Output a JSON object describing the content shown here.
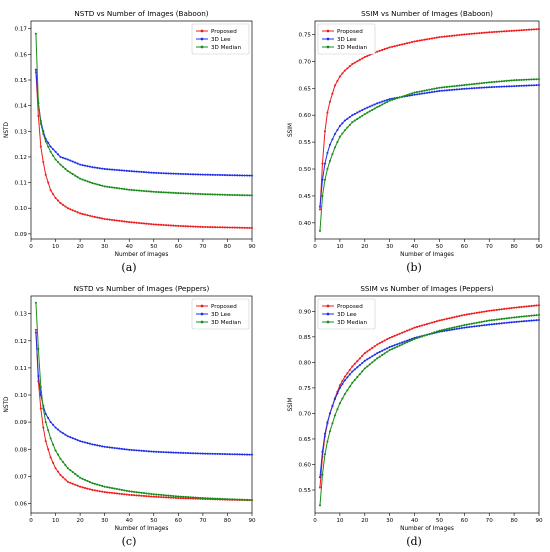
{
  "legend_labels": [
    "Proposed",
    "3D Lee",
    "3D Median"
  ],
  "colors": {
    "proposed": "#ee1c1c",
    "lee": "#1f2fe8",
    "median": "#1a8c1a"
  },
  "chart_data": [
    {
      "type": "line",
      "title": "NSTD vs Number of Images (Baboon)",
      "xlabel": "Number of Images",
      "ylabel": "NSTD",
      "caption": "(a)",
      "xlim": [
        0,
        90
      ],
      "ylim": [
        0.088,
        0.173
      ],
      "xticks": [
        0,
        10,
        20,
        30,
        40,
        50,
        60,
        70,
        80,
        90
      ],
      "yticks": [
        0.09,
        0.1,
        0.11,
        0.12,
        0.13,
        0.14,
        0.15,
        0.16,
        0.17
      ],
      "ytick_labels": [
        "0.09",
        "0.10",
        "0.11",
        "0.12",
        "0.13",
        "0.14",
        "0.15",
        "0.16",
        "0.17"
      ],
      "legend_position": "top-right",
      "grid": false,
      "x": [
        2,
        3,
        4,
        5,
        6,
        8,
        10,
        12,
        15,
        20,
        25,
        30,
        40,
        50,
        60,
        70,
        80,
        90
      ],
      "series": [
        {
          "name": "Proposed",
          "values": [
            0.153,
            0.136,
            0.124,
            0.118,
            0.113,
            0.107,
            0.104,
            0.102,
            0.1,
            0.098,
            0.0968,
            0.0958,
            0.0946,
            0.0937,
            0.0931,
            0.0927,
            0.0925,
            0.0923
          ]
        },
        {
          "name": "3D Lee",
          "values": [
            0.154,
            0.141,
            0.134,
            0.13,
            0.127,
            0.124,
            0.122,
            0.12,
            0.119,
            0.117,
            0.116,
            0.1153,
            0.1145,
            0.1138,
            0.1134,
            0.1131,
            0.1129,
            0.1127
          ]
        },
        {
          "name": "3D Median",
          "values": [
            0.168,
            0.141,
            0.133,
            0.129,
            0.126,
            0.122,
            0.119,
            0.117,
            0.1145,
            0.1115,
            0.1098,
            0.1085,
            0.1072,
            0.1064,
            0.1059,
            0.1055,
            0.1052,
            0.105
          ]
        }
      ]
    },
    {
      "type": "line",
      "title": "SSIM vs Number of Images (Baboon)",
      "xlabel": "Number of Images",
      "ylabel": "SSIM",
      "caption": "(b)",
      "xlim": [
        0,
        90
      ],
      "ylim": [
        0.37,
        0.775
      ],
      "xticks": [
        0,
        10,
        20,
        30,
        40,
        50,
        60,
        70,
        80,
        90
      ],
      "yticks": [
        0.4,
        0.45,
        0.5,
        0.55,
        0.6,
        0.65,
        0.7,
        0.75
      ],
      "ytick_labels": [
        "0.40",
        "0.45",
        "0.50",
        "0.55",
        "0.60",
        "0.65",
        "0.70",
        "0.75"
      ],
      "legend_position": "top-left",
      "grid": false,
      "x": [
        2,
        3,
        4,
        5,
        6,
        8,
        10,
        12,
        15,
        20,
        25,
        30,
        40,
        50,
        60,
        70,
        80,
        90
      ],
      "series": [
        {
          "name": "Proposed",
          "values": [
            0.425,
            0.51,
            0.57,
            0.605,
            0.625,
            0.655,
            0.672,
            0.683,
            0.695,
            0.708,
            0.718,
            0.726,
            0.737,
            0.745,
            0.75,
            0.754,
            0.757,
            0.76
          ]
        },
        {
          "name": "3D Lee",
          "values": [
            0.43,
            0.48,
            0.51,
            0.53,
            0.545,
            0.565,
            0.58,
            0.59,
            0.6,
            0.612,
            0.622,
            0.63,
            0.638,
            0.645,
            0.649,
            0.652,
            0.654,
            0.656
          ]
        },
        {
          "name": "3D Median",
          "values": [
            0.385,
            0.45,
            0.48,
            0.5,
            0.515,
            0.54,
            0.56,
            0.572,
            0.587,
            0.602,
            0.615,
            0.627,
            0.642,
            0.651,
            0.656,
            0.661,
            0.665,
            0.667
          ]
        }
      ]
    },
    {
      "type": "line",
      "title": "NSTD vs Number of Images (Peppers)",
      "xlabel": "Number of Images",
      "ylabel": "NSTD",
      "caption": "(c)",
      "xlim": [
        0,
        90
      ],
      "ylim": [
        0.0565,
        0.1365
      ],
      "xticks": [
        0,
        10,
        20,
        30,
        40,
        50,
        60,
        70,
        80,
        90
      ],
      "yticks": [
        0.06,
        0.07,
        0.08,
        0.09,
        0.1,
        0.11,
        0.12,
        0.13
      ],
      "ytick_labels": [
        "0.06",
        "0.07",
        "0.08",
        "0.09",
        "0.10",
        "0.11",
        "0.12",
        "0.13"
      ],
      "legend_position": "top-right",
      "grid": false,
      "x": [
        2,
        3,
        4,
        5,
        6,
        8,
        10,
        12,
        15,
        20,
        25,
        30,
        40,
        50,
        60,
        70,
        80,
        90
      ],
      "series": [
        {
          "name": "Proposed",
          "values": [
            0.124,
            0.105,
            0.095,
            0.088,
            0.083,
            0.077,
            0.073,
            0.0705,
            0.068,
            0.0662,
            0.065,
            0.0642,
            0.0632,
            0.0625,
            0.062,
            0.0617,
            0.0614,
            0.0612
          ]
        },
        {
          "name": "3D Lee",
          "values": [
            0.123,
            0.107,
            0.1,
            0.096,
            0.093,
            0.09,
            0.088,
            0.0865,
            0.0848,
            0.083,
            0.0818,
            0.0809,
            0.0798,
            0.0791,
            0.0787,
            0.0784,
            0.0782,
            0.078
          ]
        },
        {
          "name": "3D Median",
          "values": [
            0.134,
            0.117,
            0.103,
            0.095,
            0.09,
            0.084,
            0.0795,
            0.0765,
            0.073,
            0.0695,
            0.0675,
            0.0662,
            0.0645,
            0.0634,
            0.0626,
            0.062,
            0.0616,
            0.0613
          ]
        }
      ]
    },
    {
      "type": "line",
      "title": "SSIM vs Number of Images (Peppers)",
      "xlabel": "Number of Images",
      "ylabel": "SSIM",
      "caption": "(d)",
      "xlim": [
        0,
        90
      ],
      "ylim": [
        0.505,
        0.93
      ],
      "xticks": [
        0,
        10,
        20,
        30,
        40,
        50,
        60,
        70,
        80,
        90
      ],
      "yticks": [
        0.55,
        0.6,
        0.65,
        0.7,
        0.75,
        0.8,
        0.85,
        0.9
      ],
      "ytick_labels": [
        "0.55",
        "0.60",
        "0.65",
        "0.70",
        "0.75",
        "0.80",
        "0.85",
        "0.90"
      ],
      "legend_position": "top-left",
      "grid": false,
      "x": [
        2,
        3,
        4,
        5,
        6,
        8,
        10,
        12,
        15,
        20,
        25,
        30,
        40,
        50,
        60,
        70,
        80,
        90
      ],
      "series": [
        {
          "name": "Proposed",
          "values": [
            0.555,
            0.615,
            0.655,
            0.68,
            0.7,
            0.73,
            0.755,
            0.772,
            0.792,
            0.818,
            0.835,
            0.848,
            0.868,
            0.882,
            0.893,
            0.901,
            0.907,
            0.912
          ]
        },
        {
          "name": "3D Lee",
          "values": [
            0.575,
            0.625,
            0.66,
            0.683,
            0.7,
            0.728,
            0.75,
            0.765,
            0.782,
            0.803,
            0.818,
            0.83,
            0.848,
            0.86,
            0.868,
            0.874,
            0.879,
            0.883
          ]
        },
        {
          "name": "3D Median",
          "values": [
            0.52,
            0.58,
            0.62,
            0.645,
            0.665,
            0.696,
            0.72,
            0.738,
            0.76,
            0.788,
            0.808,
            0.824,
            0.846,
            0.862,
            0.873,
            0.882,
            0.888,
            0.893
          ]
        }
      ]
    }
  ]
}
